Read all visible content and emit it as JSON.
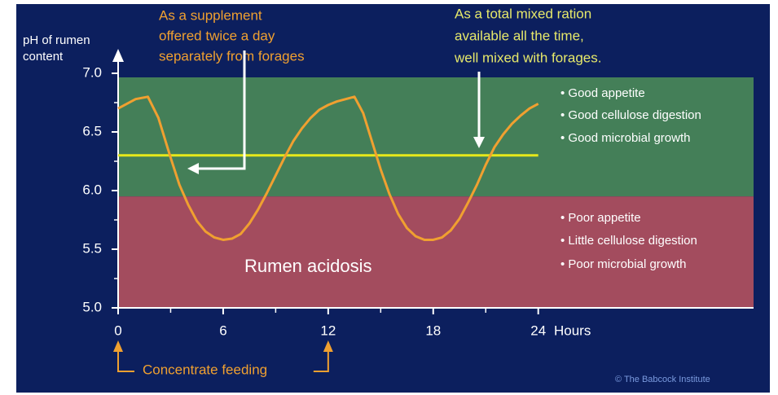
{
  "chart_data": {
    "type": "line",
    "y_label": [
      "pH of rumen",
      "content"
    ],
    "x_label": "Hours",
    "x": [
      0,
      1,
      1.7,
      2.3,
      3,
      3.5,
      4,
      4.5,
      5,
      5.5,
      6,
      6.5,
      7,
      7.5,
      8,
      8.5,
      9,
      9.5,
      10,
      10.5,
      11,
      11.5,
      12,
      12.5,
      13,
      13.5,
      14,
      14.5,
      15,
      15.5,
      16,
      16.5,
      17,
      17.5,
      18,
      18.5,
      19,
      19.5,
      20,
      20.5,
      21,
      21.5,
      22,
      22.5,
      23,
      23.5,
      24
    ],
    "series": [
      {
        "name": "Rumen pH",
        "color": "#f0a030",
        "values": [
          6.7,
          6.78,
          6.8,
          6.62,
          6.28,
          6.05,
          5.88,
          5.74,
          5.65,
          5.6,
          5.58,
          5.59,
          5.63,
          5.72,
          5.84,
          5.98,
          6.13,
          6.28,
          6.42,
          6.53,
          6.62,
          6.69,
          6.73,
          6.76,
          6.78,
          6.8,
          6.66,
          6.42,
          6.18,
          5.97,
          5.8,
          5.68,
          5.61,
          5.58,
          5.58,
          5.6,
          5.66,
          5.76,
          5.9,
          6.05,
          6.22,
          6.37,
          6.48,
          6.57,
          6.64,
          6.7,
          6.74
        ]
      }
    ],
    "xlim": [
      0,
      36.3
    ],
    "xticks": [
      0,
      6,
      12,
      18,
      24
    ],
    "x_minor_ticks": [
      3,
      9,
      15,
      21
    ],
    "ylim": [
      5.0,
      7.0
    ],
    "yticks": [
      {
        "value": 5.0,
        "label": "5.0"
      },
      {
        "value": 5.5,
        "label": "5.5"
      },
      {
        "value": 6.0,
        "label": "6.0"
      },
      {
        "value": 6.5,
        "label": "6.5"
      },
      {
        "value": 7.0,
        "label": "7.0"
      }
    ],
    "y_minor_ticks": [
      5.25,
      5.75,
      6.25,
      6.75
    ],
    "threshold": 5.95,
    "band_colors": {
      "good": "#447f58",
      "poor": "#a34c5e"
    },
    "reference_line": {
      "value": 6.3,
      "x_end": 24,
      "color": "#e6e81a"
    },
    "good_notes": [
      "• Good appetite",
      "• Good cellulose digestion",
      "• Good microbial growth"
    ],
    "poor_notes": [
      "• Poor appetite",
      "• Little cellulose digestion",
      "• Poor microbial growth"
    ],
    "band_label": "Rumen acidosis",
    "annotation_left": [
      "As a supplement",
      "offered twice a day",
      "separately from forages"
    ],
    "annotation_right": [
      "As a total mixed ration",
      "available all the time,",
      "well mixed with forages."
    ],
    "feeding_label": "Concentrate feeding",
    "feeding_times": [
      0,
      12
    ],
    "credit": "© The Babcock Institute"
  }
}
